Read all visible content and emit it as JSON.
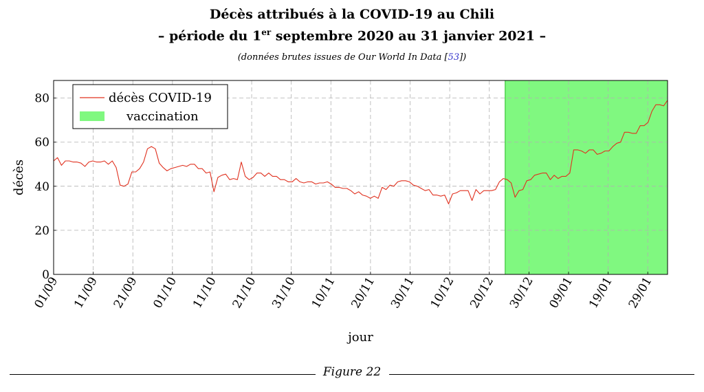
{
  "header": {
    "title_line1": "Décès attribués à la COVID-19 au Chili",
    "title_line2_pre": "– période du 1",
    "title_line2_sup": "er",
    "title_line2_post": " septembre 2020 au 31 janvier 2021 –",
    "subtitle_pre": "(données brutes issues de Our World In Data [",
    "subtitle_ref": "53",
    "subtitle_post": "])"
  },
  "caption": "Figure 22",
  "colors": {
    "line": "#e0301e",
    "vaccination": "#80f880",
    "vaccination_border": "#22bb22",
    "grid": "#b0b0b0"
  },
  "chart_data": {
    "type": "line",
    "xlabel": "jour",
    "ylabel": "décès",
    "ylim": [
      0,
      88
    ],
    "yticks": [
      0,
      20,
      40,
      60,
      80
    ],
    "grid": true,
    "legend_position": "top-left",
    "xtick_labels": [
      "01/09",
      "11/09",
      "21/09",
      "01/10",
      "11/10",
      "21/10",
      "31/10",
      "10/11",
      "20/11",
      "30/11",
      "10/12",
      "20/12",
      "30/12",
      "09/01",
      "19/01",
      "29/01"
    ],
    "x_start": "01/09/2020",
    "x_end": "03/02/2021",
    "series": [
      {
        "name": "décès COVID-19",
        "values": [
          51.5,
          53,
          49.5,
          51.5,
          51.5,
          51,
          51,
          50.5,
          49,
          51,
          51.5,
          51,
          51,
          51.5,
          50,
          51.5,
          48.5,
          40.5,
          40,
          41,
          46.5,
          46.5,
          48,
          51,
          57,
          58,
          57,
          50.5,
          48.5,
          47,
          48,
          48.5,
          49,
          49.5,
          49,
          50,
          50,
          48,
          48,
          46,
          46.5,
          37.5,
          44,
          45,
          45.5,
          43,
          43.5,
          43,
          51,
          44.5,
          43,
          44,
          46,
          46,
          44.5,
          46,
          44.5,
          44.5,
          43,
          43,
          42,
          42,
          43.5,
          42,
          41.5,
          42,
          42,
          41,
          41.5,
          41.5,
          42,
          41,
          39.5,
          39.5,
          39,
          39,
          38,
          36.5,
          37.5,
          36,
          35.5,
          34.5,
          35.5,
          34.5,
          39.5,
          38.5,
          40.5,
          40,
          42,
          42.5,
          42.5,
          42,
          40.5,
          40,
          39,
          38,
          38.5,
          36,
          36,
          35.5,
          36,
          32,
          36.5,
          37,
          38,
          38,
          38,
          33.5,
          38.5,
          36.5,
          38,
          38,
          38,
          38.5,
          42,
          43.5,
          43,
          41.5,
          35,
          38,
          38.5,
          42.5,
          43,
          45,
          45.5,
          46,
          46,
          43,
          45,
          43.5,
          44.5,
          44.5,
          46,
          56.5,
          56.5,
          56,
          55,
          56.5,
          56.5,
          54.5,
          55,
          56,
          56,
          58,
          59.5,
          60,
          64.5,
          64.5,
          64,
          64,
          67.5,
          67.5,
          69,
          74,
          77,
          77,
          76.5,
          79
        ]
      },
      {
        "name": "vaccination",
        "x_range": [
          "24/12/2020",
          "03/02/2021"
        ]
      }
    ]
  }
}
